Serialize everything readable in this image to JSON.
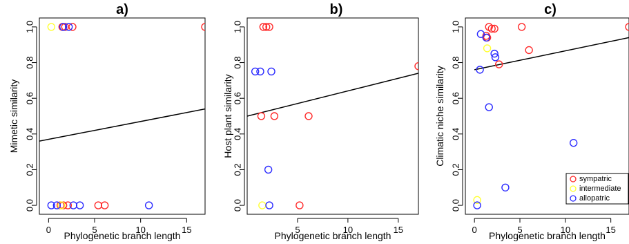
{
  "legend": {
    "items": [
      {
        "label": "sympatric",
        "color": "#ff2a2a"
      },
      {
        "label": "intermediate",
        "color": "#ffff33"
      },
      {
        "label": "allopatric",
        "color": "#2a2aff"
      }
    ]
  },
  "chart_data": [
    {
      "type": "scatter",
      "title": "a)",
      "xlabel": "Phylogenetic branch length",
      "ylabel": "Mimetic similarity",
      "xlim": [
        -1,
        17
      ],
      "ylim": [
        -0.05,
        1.05
      ],
      "xticks": [
        0,
        5,
        10,
        15
      ],
      "yticks": [
        0.0,
        0.2,
        0.4,
        0.6,
        0.8,
        1.0
      ],
      "ytick_labels": [
        "0.0",
        "0.2",
        "0.4",
        "0.6",
        "0.8",
        "1.0"
      ],
      "trend_line": {
        "x": [
          -1,
          17
        ],
        "y": [
          0.36,
          0.54
        ]
      },
      "series": [
        {
          "name": "sympatric",
          "color": "#ff2a2a",
          "points": [
            [
              1.5,
              1.0
            ],
            [
              1.8,
              1.0
            ],
            [
              2.6,
              1.0
            ],
            [
              17.0,
              1.0
            ],
            [
              1.3,
              0.0
            ],
            [
              1.6,
              0.0
            ],
            [
              2.1,
              0.0
            ],
            [
              5.4,
              0.0
            ],
            [
              6.1,
              0.0
            ]
          ]
        },
        {
          "name": "intermediate",
          "color": "#ffff33",
          "points": [
            [
              0.3,
              1.0
            ],
            [
              1.4,
              0.0
            ]
          ]
        },
        {
          "name": "allopatric",
          "color": "#2a2aff",
          "points": [
            [
              1.6,
              1.0
            ],
            [
              2.2,
              1.0
            ],
            [
              0.3,
              0.0
            ],
            [
              0.9,
              0.0
            ],
            [
              2.7,
              0.0
            ],
            [
              3.4,
              0.0
            ],
            [
              10.9,
              0.0
            ]
          ]
        }
      ]
    },
    {
      "type": "scatter",
      "title": "b)",
      "xlabel": "Phylogenetic branch length",
      "ylabel": "Host plant similarity",
      "xlim": [
        0,
        17
      ],
      "ylim": [
        -0.05,
        1.05
      ],
      "xticks": [
        5,
        10,
        15
      ],
      "yticks": [
        0.0,
        0.2,
        0.4,
        0.6,
        0.8,
        1.0
      ],
      "ytick_labels": [
        "0.0",
        "0.2",
        "0.4",
        "0.6",
        "0.8",
        "1.0"
      ],
      "trend_line": {
        "x": [
          0,
          17
        ],
        "y": [
          0.5,
          0.74
        ]
      },
      "series": [
        {
          "name": "sympatric",
          "color": "#ff2a2a",
          "points": [
            [
              1.6,
              1.0
            ],
            [
              1.9,
              1.0
            ],
            [
              2.2,
              1.0
            ],
            [
              17.0,
              0.78
            ],
            [
              1.4,
              0.5
            ],
            [
              2.7,
              0.5
            ],
            [
              6.1,
              0.5
            ],
            [
              5.2,
              0.0
            ]
          ]
        },
        {
          "name": "intermediate",
          "color": "#ffff33",
          "points": [
            [
              1.5,
              0.0
            ]
          ]
        },
        {
          "name": "allopatric",
          "color": "#2a2aff",
          "points": [
            [
              0.8,
              0.75
            ],
            [
              1.3,
              0.75
            ],
            [
              2.4,
              0.75
            ],
            [
              2.1,
              0.2
            ],
            [
              2.2,
              0.0
            ]
          ]
        }
      ]
    },
    {
      "type": "scatter",
      "title": "c)",
      "xlabel": "Phylogenetic branch length",
      "ylabel": "Climatic niche similarity",
      "xlim": [
        -1,
        17
      ],
      "ylim": [
        -0.05,
        1.05
      ],
      "xticks": [
        0,
        5,
        10,
        15
      ],
      "yticks": [
        0.0,
        0.2,
        0.4,
        0.6,
        0.8,
        1.0
      ],
      "ytick_labels": [
        "0.0",
        "0.2",
        "0.4",
        "0.6",
        "0.8",
        "1.0"
      ],
      "trend_line": {
        "x": [
          0,
          17
        ],
        "y": [
          0.76,
          0.94
        ]
      },
      "legend_position": "bottom-right",
      "series": [
        {
          "name": "sympatric",
          "color": "#ff2a2a",
          "points": [
            [
              1.6,
              1.0
            ],
            [
              1.9,
              0.99
            ],
            [
              2.2,
              0.99
            ],
            [
              5.2,
              1.0
            ],
            [
              17.0,
              1.0
            ],
            [
              1.3,
              0.95
            ],
            [
              1.4,
              0.94
            ],
            [
              6.0,
              0.87
            ],
            [
              2.7,
              0.79
            ]
          ]
        },
        {
          "name": "intermediate",
          "color": "#ffff33",
          "points": [
            [
              1.4,
              0.88
            ],
            [
              0.3,
              0.03
            ]
          ]
        },
        {
          "name": "allopatric",
          "color": "#2a2aff",
          "points": [
            [
              0.7,
              0.96
            ],
            [
              1.3,
              0.94
            ],
            [
              2.2,
              0.85
            ],
            [
              2.3,
              0.83
            ],
            [
              0.6,
              0.76
            ],
            [
              1.6,
              0.55
            ],
            [
              10.9,
              0.35
            ],
            [
              3.4,
              0.1
            ],
            [
              0.3,
              0.0
            ]
          ]
        }
      ]
    }
  ]
}
